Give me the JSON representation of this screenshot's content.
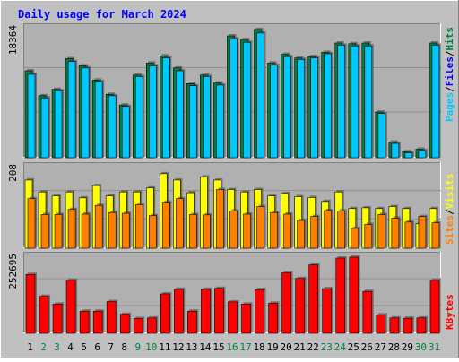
{
  "title": "Daily usage for March 2024",
  "colors": {
    "background": "#c0c0c0",
    "plot_bg": "#b0b0b0",
    "title": "#0000ff",
    "hits": "#008040",
    "files": "#00c8ff",
    "pages": "#00c8ff",
    "visits": "#ffff00",
    "sites": "#ff8000",
    "kbytes": "#ff0000",
    "weekend_label": "#008040",
    "weekday_label": "#000000"
  },
  "chart_data": [
    {
      "type": "bar",
      "panel": "hits-files-pages",
      "y_max_label": "18364",
      "y_max": 18364,
      "right_label": {
        "pages": "Pages",
        "files": "Files",
        "hits": "Hits",
        "sep": "/"
      },
      "categories": [
        "1",
        "2",
        "3",
        "4",
        "5",
        "6",
        "7",
        "8",
        "9",
        "10",
        "11",
        "12",
        "13",
        "14",
        "15",
        "16",
        "17",
        "18",
        "19",
        "20",
        "21",
        "22",
        "23",
        "24",
        "25",
        "26",
        "27",
        "28",
        "29",
        "30",
        "31"
      ],
      "series": [
        {
          "name": "Hits",
          "values": [
            12200,
            8700,
            9600,
            13900,
            12900,
            10900,
            8900,
            7400,
            11600,
            13300,
            14300,
            12600,
            10400,
            11600,
            10500,
            17100,
            16600,
            18000,
            13300,
            14500,
            14000,
            14200,
            14800,
            16100,
            16000,
            16100,
            6400,
            2200,
            850,
            1200,
            16100
          ]
        },
        {
          "name": "Files",
          "values": [
            11700,
            8400,
            9400,
            13500,
            12600,
            10700,
            8700,
            7200,
            11400,
            12900,
            14000,
            12200,
            10100,
            11400,
            10200,
            16700,
            16200,
            17500,
            13000,
            14200,
            13800,
            14000,
            14600,
            15800,
            15700,
            15700,
            6200,
            2000,
            700,
            1000,
            15800
          ]
        }
      ]
    },
    {
      "type": "bar",
      "panel": "visits-sites",
      "y_max_label": "208",
      "y_max": 208,
      "right_label": {
        "sites": "Sites",
        "visits": "Visits",
        "sep": "/"
      },
      "categories": [
        "1",
        "2",
        "3",
        "4",
        "5",
        "6",
        "7",
        "8",
        "9",
        "10",
        "11",
        "12",
        "13",
        "14",
        "15",
        "16",
        "17",
        "18",
        "19",
        "20",
        "21",
        "22",
        "23",
        "24",
        "25",
        "26",
        "27",
        "28",
        "29",
        "30",
        "31"
      ],
      "series": [
        {
          "name": "Visits",
          "values": [
            172,
            142,
            132,
            142,
            127,
            158,
            132,
            142,
            142,
            152,
            188,
            172,
            140,
            180,
            172,
            148,
            142,
            148,
            132,
            138,
            130,
            128,
            118,
            142,
            100,
            102,
            100,
            105,
            100,
            62,
            100
          ]
        },
        {
          "name": "Sites",
          "values": [
            125,
            85,
            85,
            98,
            86,
            108,
            90,
            88,
            110,
            82,
            116,
            125,
            85,
            84,
            148,
            94,
            86,
            105,
            90,
            86,
            70,
            80,
            95,
            94,
            50,
            60,
            85,
            76,
            66,
            80,
            64
          ]
        }
      ]
    },
    {
      "type": "bar",
      "panel": "kbytes",
      "y_max_label": "252695",
      "y_max": 252695,
      "right_label": {
        "kbytes": "KBytes"
      },
      "categories": [
        "1",
        "2",
        "3",
        "4",
        "5",
        "6",
        "7",
        "8",
        "9",
        "10",
        "11",
        "12",
        "13",
        "14",
        "15",
        "16",
        "17",
        "18",
        "19",
        "20",
        "21",
        "22",
        "23",
        "24",
        "25",
        "26",
        "27",
        "28",
        "29",
        "30",
        "31"
      ],
      "series": [
        {
          "name": "KBytes",
          "values": [
            191000,
            120000,
            95000,
            172000,
            72000,
            72000,
            103000,
            62000,
            48000,
            50000,
            128000,
            143000,
            72000,
            143000,
            146000,
            102000,
            95000,
            142000,
            98000,
            196000,
            178000,
            222000,
            145000,
            244000,
            247000,
            136000,
            60000,
            50000,
            49000,
            50000,
            172000
          ]
        }
      ]
    }
  ],
  "x_labels": [
    {
      "text": "1",
      "weekend": false
    },
    {
      "text": "2",
      "weekend": true
    },
    {
      "text": "3",
      "weekend": true
    },
    {
      "text": "4",
      "weekend": false
    },
    {
      "text": "5",
      "weekend": false
    },
    {
      "text": "6",
      "weekend": false
    },
    {
      "text": "7",
      "weekend": false
    },
    {
      "text": "8",
      "weekend": false
    },
    {
      "text": "9",
      "weekend": true
    },
    {
      "text": "10",
      "weekend": true
    },
    {
      "text": "11",
      "weekend": false
    },
    {
      "text": "12",
      "weekend": false
    },
    {
      "text": "13",
      "weekend": false
    },
    {
      "text": "14",
      "weekend": false
    },
    {
      "text": "15",
      "weekend": false
    },
    {
      "text": "16",
      "weekend": true
    },
    {
      "text": "17",
      "weekend": true
    },
    {
      "text": "18",
      "weekend": false
    },
    {
      "text": "19",
      "weekend": false
    },
    {
      "text": "20",
      "weekend": false
    },
    {
      "text": "21",
      "weekend": false
    },
    {
      "text": "22",
      "weekend": false
    },
    {
      "text": "23",
      "weekend": true
    },
    {
      "text": "24",
      "weekend": true
    },
    {
      "text": "25",
      "weekend": false
    },
    {
      "text": "26",
      "weekend": false
    },
    {
      "text": "27",
      "weekend": false
    },
    {
      "text": "28",
      "weekend": false
    },
    {
      "text": "29",
      "weekend": false
    },
    {
      "text": "30",
      "weekend": true
    },
    {
      "text": "31",
      "weekend": true
    }
  ]
}
